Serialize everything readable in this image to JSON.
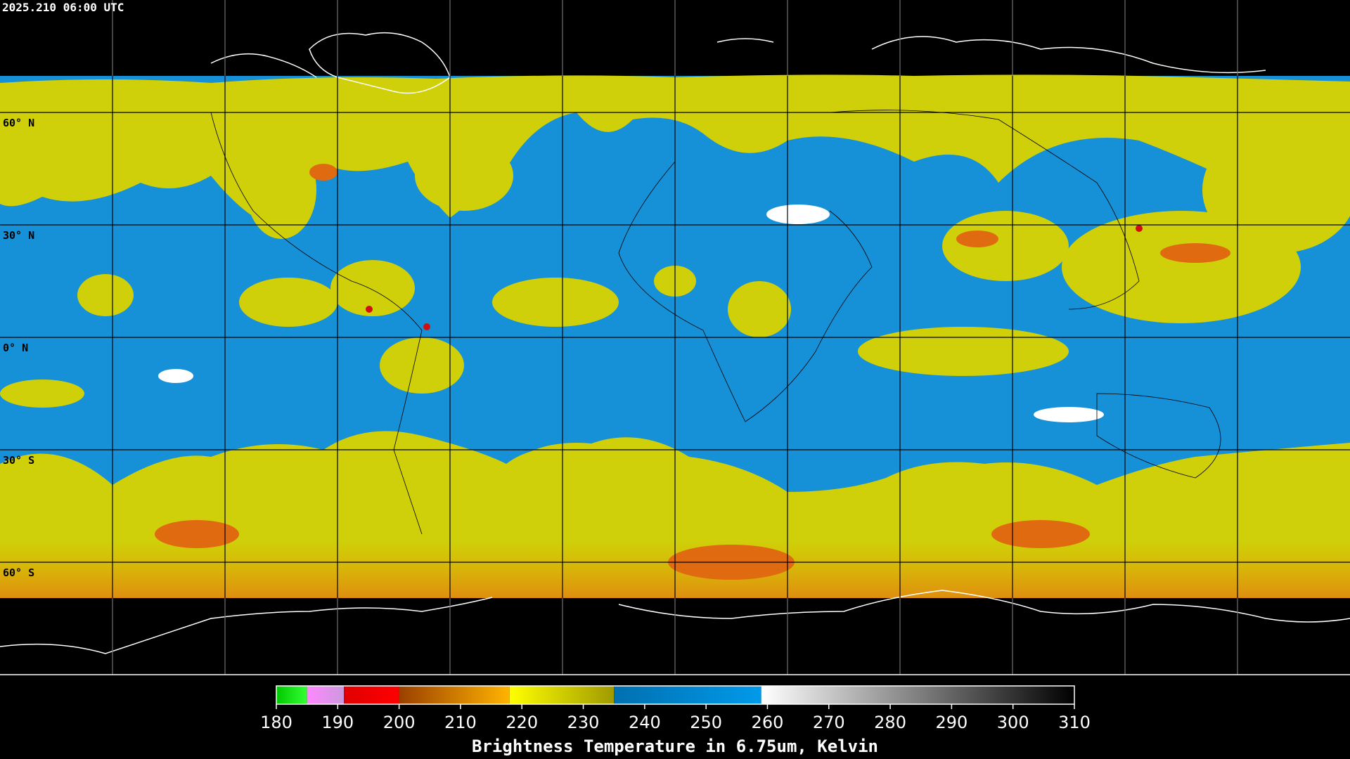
{
  "header": {
    "title": "2025.210 06:00 UTC"
  },
  "map": {
    "lat_labels": [
      "60° N",
      "30° N",
      "0° N",
      "30° S",
      "60° S"
    ]
  },
  "colorbar": {
    "title": "Brightness Temperature in 6.75um, Kelvin",
    "xlim": [
      180,
      310
    ],
    "xticks": [
      180,
      190,
      200,
      210,
      220,
      230,
      240,
      250,
      260,
      270,
      280,
      290,
      300,
      310
    ],
    "bands": [
      {
        "from": 180,
        "to": 185,
        "colors": [
          "#00c800",
          "#33ff33"
        ]
      },
      {
        "from": 185,
        "to": 191,
        "colors": [
          "#ff88ff",
          "#cc99dd"
        ]
      },
      {
        "from": 191,
        "to": 200,
        "colors": [
          "#e00000",
          "#ff0000"
        ]
      },
      {
        "from": 200,
        "to": 218,
        "colors": [
          "#9a4000",
          "#ffb400"
        ]
      },
      {
        "from": 218,
        "to": 235,
        "colors": [
          "#ffff00",
          "#a09a00"
        ]
      },
      {
        "from": 235,
        "to": 259,
        "colors": [
          "#0070b0",
          "#009aea"
        ]
      },
      {
        "from": 259,
        "to": 310,
        "colors": [
          "#ffffff",
          "#000000"
        ]
      }
    ]
  }
}
